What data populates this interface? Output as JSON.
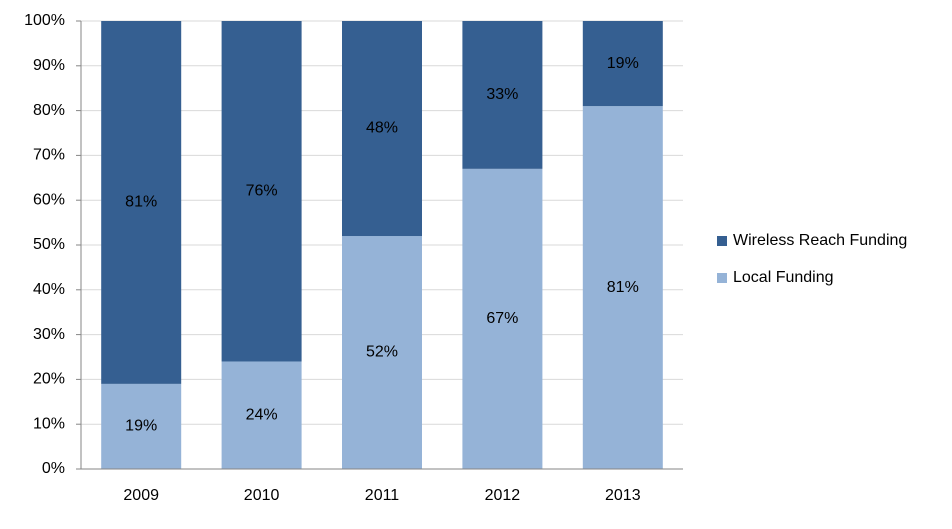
{
  "chart_data": {
    "type": "stacked_bar",
    "categories": [
      "2009",
      "2010",
      "2011",
      "2012",
      "2013"
    ],
    "series": [
      {
        "name": "Local Funding",
        "color": "#95b3d7",
        "values": [
          19,
          24,
          52,
          67,
          81
        ],
        "value_labels": [
          "19%",
          "24%",
          "52%",
          "67%",
          "81%"
        ]
      },
      {
        "name": "Wireless Reach Funding",
        "color": "#355f91",
        "values": [
          81,
          76,
          48,
          33,
          19
        ],
        "value_labels": [
          "81%",
          "76%",
          "48%",
          "33%",
          "19%"
        ]
      }
    ],
    "ylim": [
      0,
      100
    ],
    "yticks": [
      {
        "value": 0,
        "label": "0%"
      },
      {
        "value": 10,
        "label": "10%"
      },
      {
        "value": 20,
        "label": "20%"
      },
      {
        "value": 30,
        "label": "30%"
      },
      {
        "value": 40,
        "label": "40%"
      },
      {
        "value": 50,
        "label": "50%"
      },
      {
        "value": 60,
        "label": "60%"
      },
      {
        "value": 70,
        "label": "70%"
      },
      {
        "value": 80,
        "label": "80%"
      },
      {
        "value": 90,
        "label": "90%"
      },
      {
        "value": 100,
        "label": "100%"
      }
    ],
    "grid": true,
    "legend": "right"
  }
}
